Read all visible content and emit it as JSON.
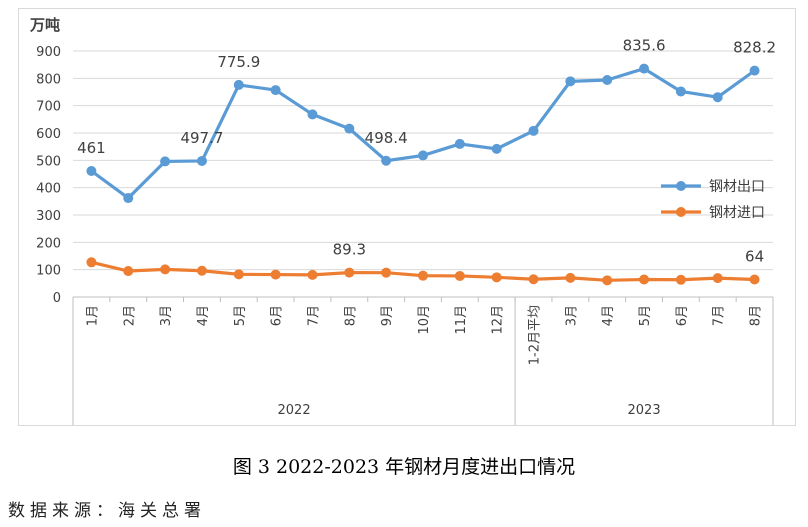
{
  "chart_data": {
    "type": "line",
    "title": "",
    "ylabel": "万吨",
    "xlabel": "",
    "ylim": [
      0,
      900
    ],
    "yticks": [
      "0",
      "100",
      "200",
      "300",
      "400",
      "500",
      "600",
      "700",
      "800",
      "900"
    ],
    "grid": true,
    "legend_position": "right",
    "categories": [
      "1月",
      "2月",
      "3月",
      "4月",
      "5月",
      "6月",
      "7月",
      "8月",
      "9月",
      "10月",
      "11月",
      "12月",
      "1-2月平均",
      "3月",
      "4月",
      "5月",
      "6月",
      "7月",
      "8月"
    ],
    "groups": [
      {
        "name": "2022",
        "count": 12
      },
      {
        "name": "2023",
        "count": 7
      }
    ],
    "series": [
      {
        "name": "钢材出口",
        "color": "#5B9BD5",
        "values": [
          461,
          362,
          496,
          497.7,
          775.9,
          757,
          668,
          616,
          498.4,
          518,
          560,
          542,
          608,
          789,
          794,
          835.6,
          752,
          731,
          828.2
        ]
      },
      {
        "name": "钢材进口",
        "color": "#ED7D31",
        "values": [
          127,
          95,
          101,
          96,
          83,
          82,
          81,
          89.3,
          89,
          78,
          77,
          72,
          65,
          70,
          61,
          64,
          63,
          69,
          64
        ]
      }
    ],
    "data_labels": [
      {
        "series": 0,
        "index": 0,
        "text": "461"
      },
      {
        "series": 0,
        "index": 3,
        "text": "497.7"
      },
      {
        "series": 0,
        "index": 4,
        "text": "775.9"
      },
      {
        "series": 0,
        "index": 8,
        "text": "498.4"
      },
      {
        "series": 0,
        "index": 15,
        "text": "835.6"
      },
      {
        "series": 0,
        "index": 18,
        "text": "828.2"
      },
      {
        "series": 1,
        "index": 7,
        "text": "89.3"
      },
      {
        "series": 1,
        "index": 18,
        "text": "64"
      }
    ]
  },
  "caption": "图 3 2022-2023 年钢材月度进出口情况",
  "source": "数据来源：海关总署"
}
